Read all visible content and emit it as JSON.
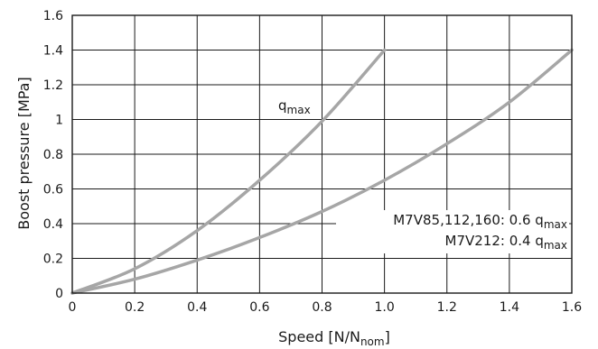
{
  "chart_data": {
    "type": "line",
    "title": "",
    "xlabel": "Speed [N/N",
    "xlabel_sub": "nom",
    "xlabel_suffix": "]",
    "ylabel": "Boost pressure [MPa]",
    "xlim": [
      0,
      1.6
    ],
    "ylim": [
      0,
      1.6
    ],
    "xticks": [
      0,
      0.2,
      0.4,
      0.6,
      0.8,
      1.0,
      1.2,
      1.4,
      1.6
    ],
    "xtick_labels": [
      "0",
      "0.2",
      "0.4",
      "0.6",
      "0.8",
      "1.0",
      "1.2",
      "1.4",
      "1.6"
    ],
    "yticks": [
      0,
      0.2,
      0.4,
      0.6,
      0.8,
      1,
      1.2,
      1.4,
      1.6
    ],
    "ytick_labels": [
      "0",
      "0.2",
      "0.4",
      "0.6",
      "0.8",
      "1",
      "1.2",
      "1.4",
      "1.6"
    ],
    "grid": true,
    "line_color": "#a6a6a6",
    "series": [
      {
        "x": [
          0,
          0.2,
          0.4,
          0.6,
          0.8,
          1.0
        ],
        "y": [
          0,
          0.14,
          0.36,
          0.65,
          0.99,
          1.4
        ]
      },
      {
        "x": [
          0,
          0.2,
          0.4,
          0.6,
          0.8,
          1.0,
          1.2,
          1.4,
          1.6
        ],
        "y": [
          0,
          0.08,
          0.19,
          0.32,
          0.47,
          0.65,
          0.86,
          1.1,
          1.4
        ]
      }
    ],
    "annotations": {
      "q_max": {
        "main": "q",
        "sub": "max"
      },
      "m7v_small": {
        "main": "M7V85,112,160: 0.6 q",
        "sub": "max"
      },
      "m7v212": {
        "main": "M7V212: 0.4 q",
        "sub": "max"
      }
    }
  }
}
